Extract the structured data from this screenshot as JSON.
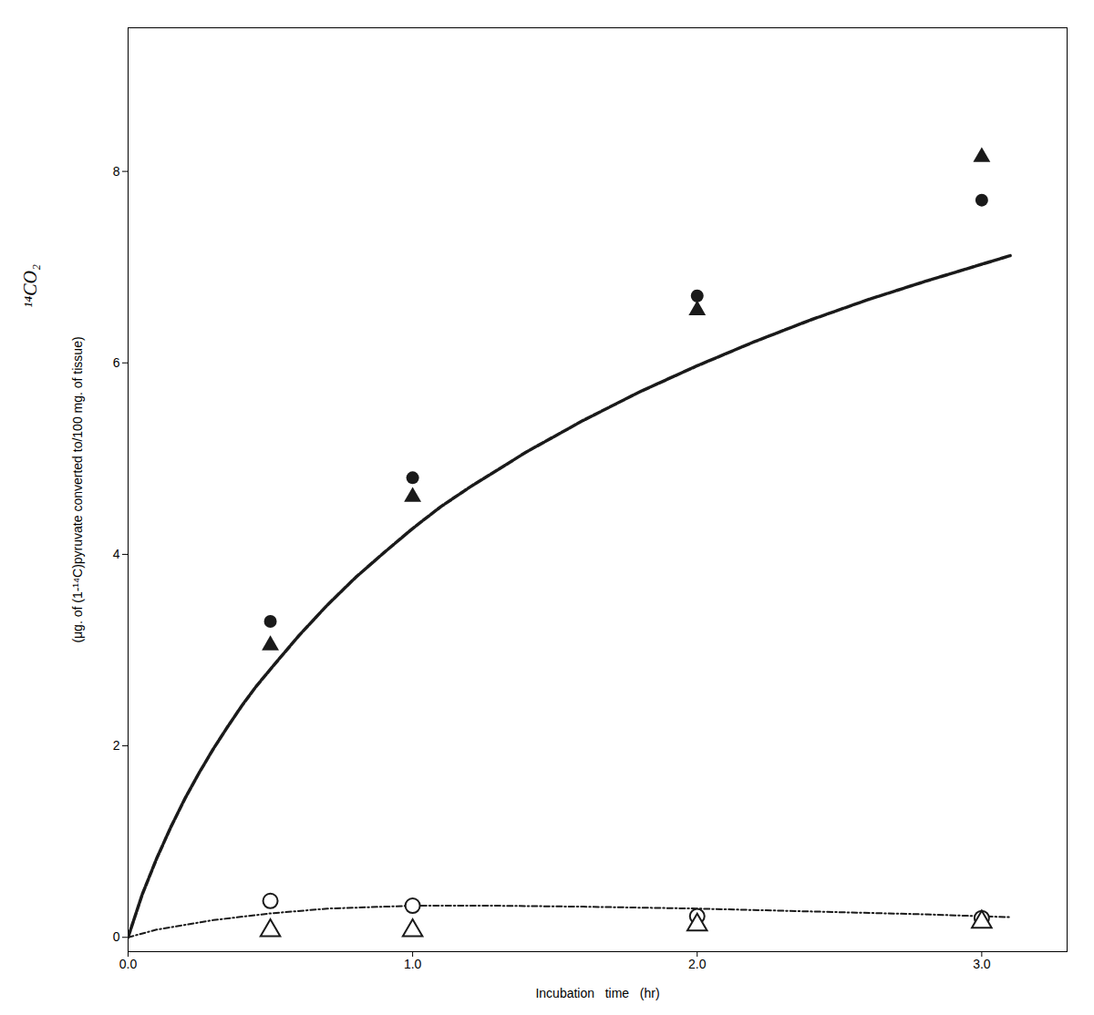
{
  "chart_data": {
    "type": "line",
    "xlabel": "Incubation   time   (hr)",
    "ylabel": "(μg. of (1-¹⁴C)pyruvate converted to/100 mg. of tissue)",
    "annotations": [
      {
        "text": "¹⁴CO₂"
      }
    ],
    "xlim": [
      0,
      3.3
    ],
    "ylim": [
      -0.15,
      9.5
    ],
    "xticks": [
      0,
      1,
      2,
      3
    ],
    "yticks": [
      0,
      2,
      4,
      6,
      8
    ],
    "grid": false,
    "series": [
      {
        "type": "line",
        "line_style": "dashed",
        "color": "#1a1a1a",
        "x": [
          0,
          0.05,
          0.1,
          0.15,
          0.2,
          0.25,
          0.3,
          0.35,
          0.4,
          0.45,
          0.5,
          0.6,
          0.7,
          0.8,
          0.9,
          1.0,
          1.1,
          1.2,
          1.4,
          1.6,
          1.8,
          2.0,
          2.2,
          2.4,
          2.6,
          2.8,
          3.0,
          3.1
        ],
        "values": [
          0,
          0.45,
          0.82,
          1.15,
          1.45,
          1.72,
          1.97,
          2.2,
          2.42,
          2.62,
          2.8,
          3.15,
          3.47,
          3.76,
          4.02,
          4.27,
          4.5,
          4.7,
          5.07,
          5.4,
          5.7,
          5.97,
          6.22,
          6.45,
          6.66,
          6.85,
          7.03,
          7.12
        ]
      },
      {
        "type": "line",
        "line_style": "dashdot",
        "color": "#1a1a1a",
        "x": [
          0,
          0.1,
          0.3,
          0.5,
          0.7,
          1.0,
          1.3,
          1.6,
          2.0,
          2.4,
          2.8,
          3.0,
          3.1
        ],
        "values": [
          0,
          0.08,
          0.18,
          0.25,
          0.3,
          0.33,
          0.33,
          0.32,
          0.3,
          0.27,
          0.24,
          0.22,
          0.21
        ]
      },
      {
        "type": "scatter",
        "marker": "filled_circle",
        "color": "#1a1a1a",
        "x": [
          0.5,
          1.0,
          2.0,
          3.0
        ],
        "values": [
          3.3,
          4.8,
          6.7,
          7.7
        ]
      },
      {
        "type": "scatter",
        "marker": "filled_triangle",
        "color": "#1a1a1a",
        "x": [
          0.5,
          1.0,
          2.0,
          3.0
        ],
        "values": [
          3.05,
          4.6,
          6.55,
          8.15
        ]
      },
      {
        "type": "scatter",
        "marker": "open_circle",
        "color": "#1a1a1a",
        "x": [
          0.5,
          1.0,
          2.0,
          3.0
        ],
        "values": [
          0.38,
          0.33,
          0.22,
          0.2
        ]
      },
      {
        "type": "scatter",
        "marker": "open_triangle",
        "color": "#1a1a1a",
        "x": [
          0.5,
          1.0,
          2.0,
          3.0
        ],
        "values": [
          0.07,
          0.07,
          0.13,
          0.16
        ]
      }
    ]
  }
}
